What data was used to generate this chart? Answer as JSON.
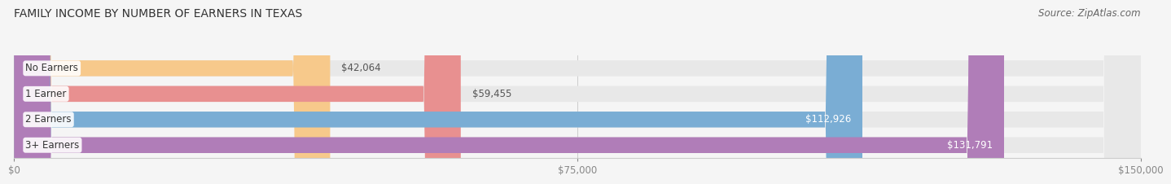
{
  "title": "FAMILY INCOME BY NUMBER OF EARNERS IN TEXAS",
  "source": "Source: ZipAtlas.com",
  "categories": [
    "No Earners",
    "1 Earner",
    "2 Earners",
    "3+ Earners"
  ],
  "values": [
    42064,
    59455,
    112926,
    131791
  ],
  "bar_colors": [
    "#f7c98b",
    "#e89090",
    "#7aadd4",
    "#b07db8"
  ],
  "bar_bg_color": "#e8e8e8",
  "label_colors": [
    "#555555",
    "#555555",
    "#ffffff",
    "#ffffff"
  ],
  "value_labels": [
    "$42,064",
    "$59,455",
    "$112,926",
    "$131,791"
  ],
  "x_ticks": [
    0,
    75000,
    150000
  ],
  "x_tick_labels": [
    "$0",
    "$75,000",
    "$150,000"
  ],
  "xlim": [
    0,
    150000
  ],
  "background_color": "#f5f5f5",
  "title_fontsize": 10,
  "label_fontsize": 8.5,
  "source_fontsize": 8.5
}
